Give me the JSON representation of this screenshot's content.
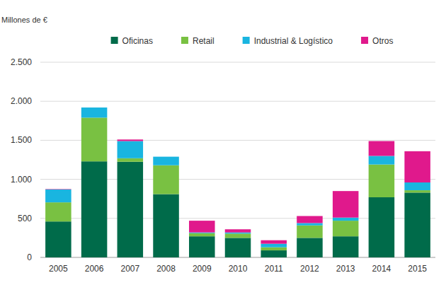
{
  "chart_data": {
    "type": "bar",
    "y_label": "Millones de €",
    "categories": [
      "2005",
      "2006",
      "2007",
      "2008",
      "2009",
      "2010",
      "2011",
      "2012",
      "2013",
      "2014",
      "2015"
    ],
    "series": [
      {
        "name": "Oficinas",
        "color": "#006b4a",
        "values": [
          460,
          1230,
          1225,
          810,
          270,
          250,
          90,
          250,
          270,
          770,
          830
        ]
      },
      {
        "name": "Retail",
        "color": "#79c142",
        "values": [
          245,
          560,
          45,
          370,
          40,
          55,
          40,
          160,
          200,
          420,
          30
        ]
      },
      {
        "name": "Industrial & Logístico",
        "color": "#19b5e0",
        "values": [
          165,
          130,
          220,
          110,
          10,
          15,
          45,
          30,
          40,
          110,
          100
        ]
      },
      {
        "name": "Otros",
        "color": "#e0198c",
        "values": [
          5,
          0,
          20,
          0,
          150,
          40,
          45,
          90,
          340,
          190,
          400
        ]
      }
    ],
    "ylim": [
      0,
      2500
    ],
    "yticks": [
      0,
      500,
      {
        "value": 1000,
        "label": "1.000"
      },
      {
        "value": 1500,
        "label": "1.500"
      },
      {
        "value": 2000,
        "label": "2.000"
      },
      {
        "value": 2500,
        "label": "2.500"
      }
    ],
    "grid": true,
    "stacked": true,
    "legend": "top"
  }
}
